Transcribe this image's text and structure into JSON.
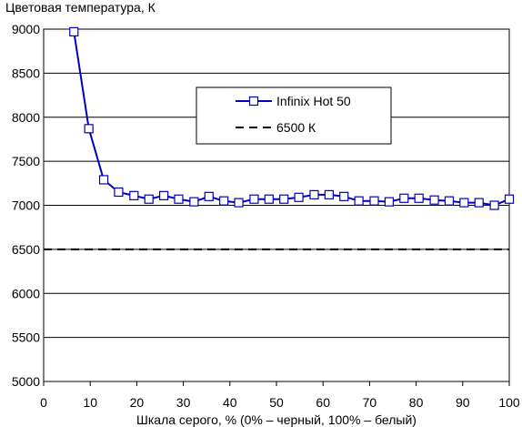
{
  "chart_data": {
    "type": "line",
    "title": "Цветовая температура, К",
    "xlabel": "Шкала серого, % (0% – черный, 100% – белый)",
    "ylabel": "",
    "xlim": [
      0,
      100
    ],
    "ylim": [
      5000,
      9000
    ],
    "xticks": [
      "0",
      "10",
      "20",
      "30",
      "40",
      "50",
      "60",
      "70",
      "80",
      "90",
      "100"
    ],
    "yticks": [
      "5000",
      "5500",
      "6000",
      "6500",
      "7000",
      "7500",
      "8000",
      "8500",
      "9000"
    ],
    "grid": "horizontal",
    "legend_position": "top-center",
    "series": [
      {
        "name": "Infinix Hot 50",
        "color": "#0000c0",
        "marker": "square",
        "x": [
          6.5,
          9.7,
          12.9,
          16.1,
          19.4,
          22.6,
          25.8,
          29.0,
          32.3,
          35.5,
          38.7,
          41.9,
          45.2,
          48.4,
          51.6,
          54.8,
          58.1,
          61.3,
          64.5,
          67.7,
          71.0,
          74.2,
          77.4,
          80.6,
          83.9,
          87.1,
          90.3,
          93.5,
          96.8,
          100.0
        ],
        "y": [
          8970,
          7870,
          7290,
          7150,
          7110,
          7070,
          7110,
          7070,
          7040,
          7100,
          7050,
          7030,
          7070,
          7070,
          7070,
          7090,
          7120,
          7120,
          7100,
          7050,
          7050,
          7040,
          7080,
          7080,
          7060,
          7050,
          7030,
          7030,
          7000,
          7070
        ]
      },
      {
        "name": "6500 К",
        "color": "#000000",
        "style": "dashed",
        "x": [
          0,
          100
        ],
        "y": [
          6500,
          6500
        ]
      }
    ]
  }
}
